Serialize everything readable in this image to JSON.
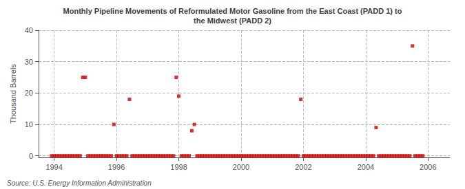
{
  "chart_data": {
    "type": "scatter",
    "title": "Monthly Pipeline Movements of Reformulated Motor Gasoline from the East Coast (PADD 1) to\nthe Midwest (PADD 2)",
    "ylabel": "Thousand Barrels",
    "annotations": [
      "Source: U.S. Energy Information Administration"
    ],
    "color": "#cc0000",
    "marker": "square",
    "grid": true,
    "xlim": [
      1993.5,
      2006.7
    ],
    "ylim": [
      -0.5,
      40
    ],
    "xticks": [
      1994,
      1996,
      1998,
      2000,
      2002,
      2004,
      2006
    ],
    "yticks": [
      0,
      10,
      20,
      30,
      40
    ],
    "x": [
      1993.917,
      1994.0,
      1994.083,
      1994.167,
      1994.25,
      1994.333,
      1994.417,
      1994.5,
      1994.583,
      1994.667,
      1994.75,
      1994.833,
      1994.917,
      1995.0,
      1995.083,
      1995.167,
      1995.25,
      1995.333,
      1995.417,
      1995.5,
      1995.583,
      1995.667,
      1995.75,
      1995.833,
      1995.917,
      1996.0,
      1996.083,
      1996.167,
      1996.25,
      1996.333,
      1996.417,
      1996.5,
      1996.583,
      1996.667,
      1996.75,
      1996.833,
      1996.917,
      1997.0,
      1997.083,
      1997.167,
      1997.25,
      1997.333,
      1997.417,
      1997.5,
      1997.583,
      1997.667,
      1997.75,
      1997.833,
      1997.917,
      1998.0,
      1998.083,
      1998.167,
      1998.25,
      1998.333,
      1998.417,
      1998.5,
      1998.583,
      1998.667,
      1998.75,
      1998.833,
      1998.917,
      1999.0,
      1999.083,
      1999.167,
      1999.25,
      1999.333,
      1999.417,
      1999.5,
      1999.583,
      1999.667,
      1999.75,
      1999.833,
      1999.917,
      2000.0,
      2000.083,
      2000.167,
      2000.25,
      2000.333,
      2000.417,
      2000.5,
      2000.583,
      2000.667,
      2000.75,
      2000.833,
      2000.917,
      2001.0,
      2001.083,
      2001.167,
      2001.25,
      2001.333,
      2001.417,
      2001.5,
      2001.583,
      2001.667,
      2001.75,
      2001.833,
      2001.917,
      2002.0,
      2002.083,
      2002.167,
      2002.25,
      2002.333,
      2002.417,
      2002.5,
      2002.583,
      2002.667,
      2002.75,
      2002.833,
      2002.917,
      2003.0,
      2003.083,
      2003.167,
      2003.25,
      2003.333,
      2003.417,
      2003.5,
      2003.583,
      2003.667,
      2003.75,
      2003.833,
      2003.917,
      2004.0,
      2004.083,
      2004.167,
      2004.25,
      2004.333,
      2004.417,
      2004.5,
      2004.583,
      2004.667,
      2004.75,
      2004.833,
      2004.917,
      2005.0,
      2005.083,
      2005.167,
      2005.25,
      2005.333,
      2005.417,
      2005.5,
      2005.583,
      2005.667,
      2005.75,
      2005.833
    ],
    "values": [
      0,
      0,
      0,
      0,
      0,
      0,
      0,
      0,
      0,
      0,
      0,
      0,
      25,
      25,
      0,
      0,
      0,
      0,
      0,
      0,
      0,
      0,
      0,
      0,
      10,
      0,
      0,
      0,
      0,
      0,
      18,
      0,
      0,
      0,
      0,
      0,
      0,
      0,
      0,
      0,
      0,
      0,
      0,
      0,
      0,
      0,
      0,
      0,
      25,
      19,
      0,
      0,
      0,
      0,
      8,
      10,
      0,
      0,
      0,
      0,
      0,
      0,
      0,
      0,
      0,
      0,
      0,
      0,
      0,
      0,
      0,
      0,
      0,
      0,
      0,
      0,
      0,
      0,
      0,
      0,
      0,
      0,
      0,
      0,
      0,
      0,
      0,
      0,
      0,
      0,
      0,
      0,
      0,
      0,
      0,
      0,
      18,
      0,
      0,
      0,
      0,
      0,
      0,
      0,
      0,
      0,
      0,
      0,
      0,
      0,
      0,
      0,
      0,
      0,
      0,
      0,
      0,
      0,
      0,
      0,
      0,
      0,
      0,
      0,
      0,
      9,
      0,
      0,
      0,
      0,
      0,
      0,
      0,
      0,
      0,
      0,
      0,
      0,
      0,
      35,
      0,
      0,
      0,
      0
    ]
  }
}
